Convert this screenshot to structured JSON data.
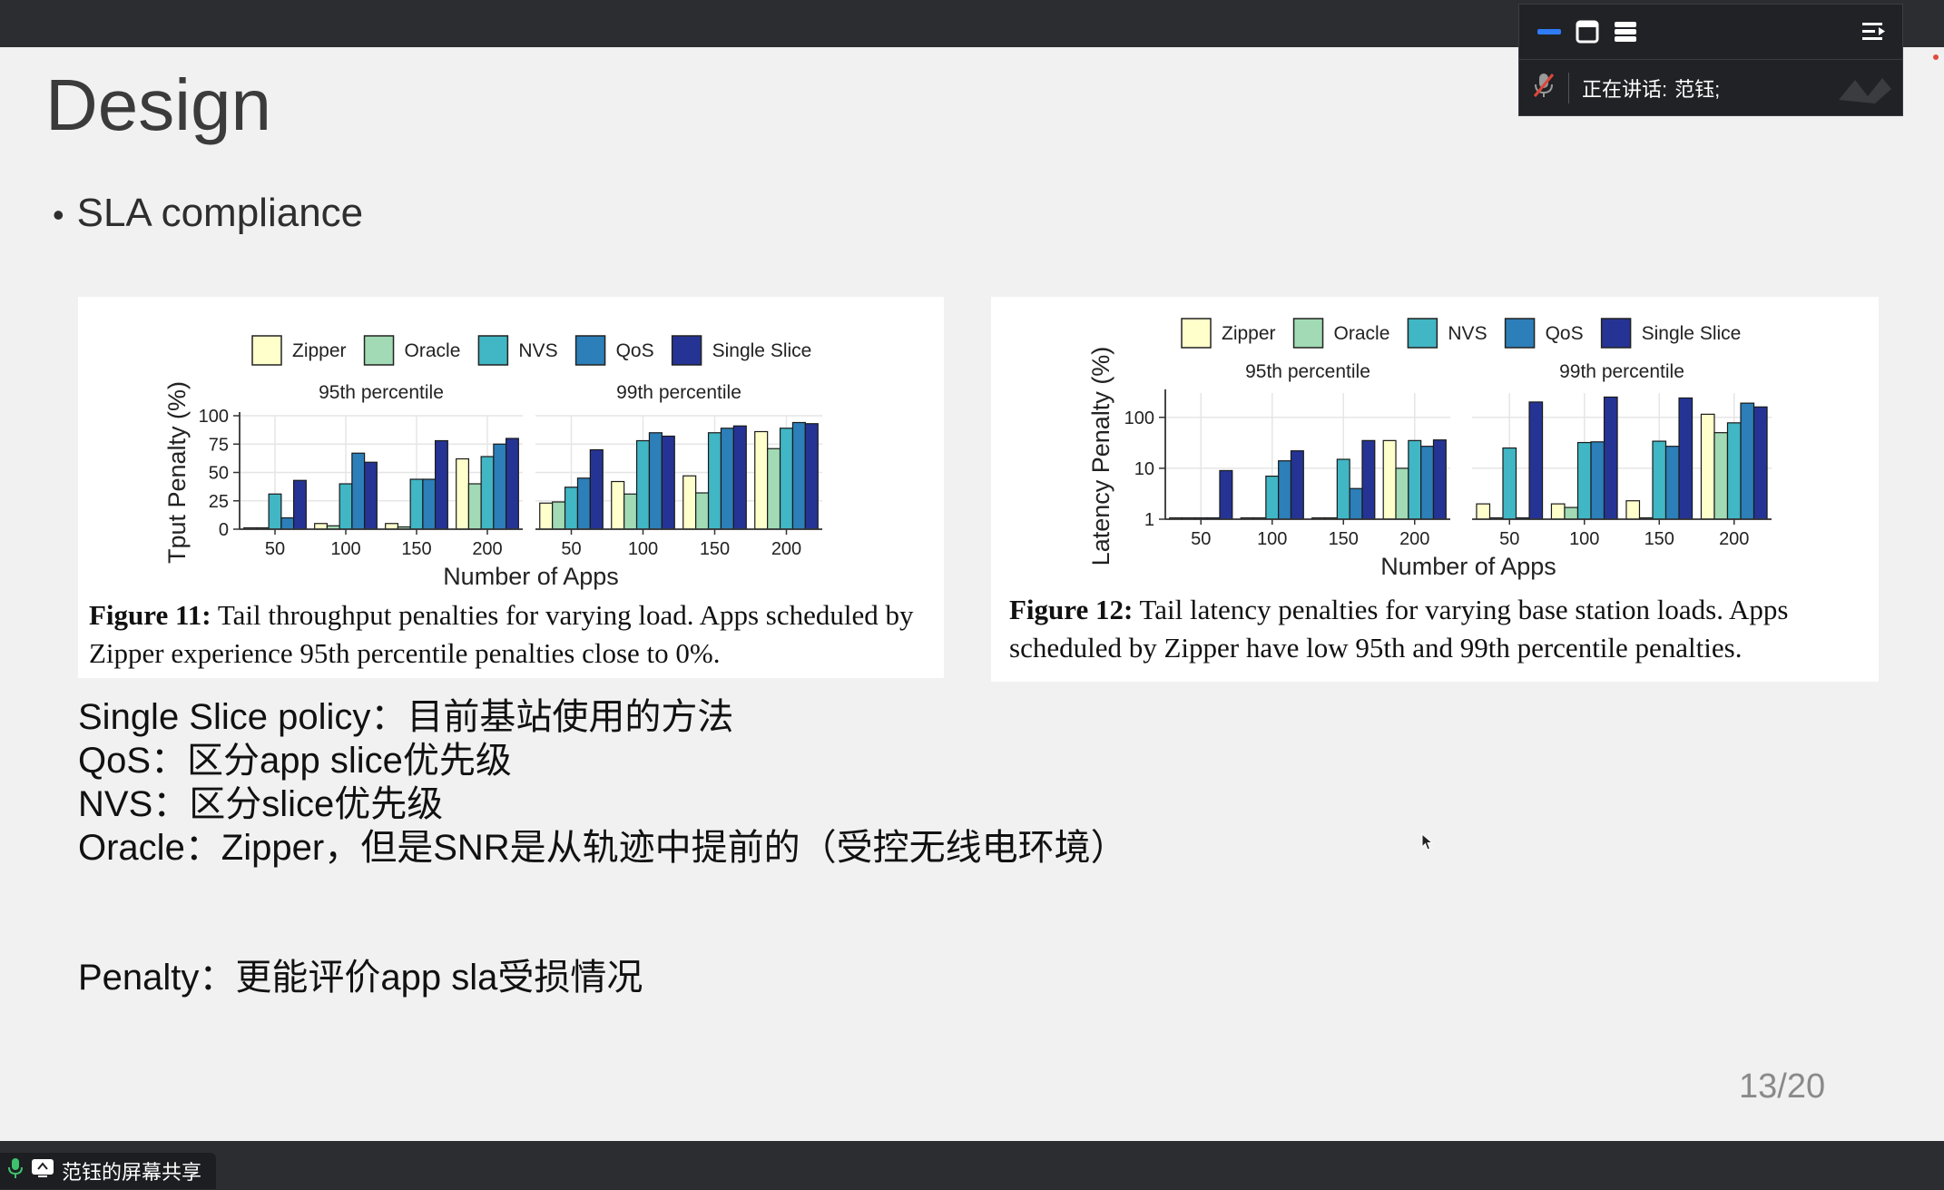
{
  "slide": {
    "title": "Design",
    "bullet": "SLA compliance",
    "page_number": "13/20",
    "notes": [
      "Single Slice policy：目前基站使用的方法",
      "QoS：区分app slice优先级",
      "NVS：区分slice优先级",
      "Oracle：Zipper，但是SNR是从轨迹中提前的（受控无线电环境）"
    ],
    "penalty_note": "Penalty：更能评价app sla受损情况"
  },
  "meeting": {
    "speaking_label": "正在讲话:",
    "speaker": "范钰;",
    "share_label": "范钰的屏幕共享",
    "icons": [
      "minimize-icon",
      "window-icon",
      "list-view-icon",
      "collapse-panel-icon",
      "mic-muted-icon",
      "mic-icon",
      "screen-share-icon",
      "cursor-icon"
    ]
  },
  "colors": {
    "Zipper": "#ffffcc",
    "Oracle": "#a1dab4",
    "NVS": "#41b6c4",
    "QoS": "#2c7fb8",
    "Single Slice": "#253494"
  },
  "chart_data": [
    {
      "type": "bar",
      "figure": "fig11",
      "caption_label": "Figure 11:",
      "caption_text": "Tail throughput penalties for varying load. Apps scheduled by Zipper experience 95th percentile penalties close to 0%.",
      "xlabel": "Number of Apps",
      "ylabel": "Tput Penalty (%)",
      "ylim": [
        0,
        100
      ],
      "yticks": [
        0,
        25,
        50,
        75,
        100
      ],
      "categories": [
        "50",
        "100",
        "150",
        "200"
      ],
      "legend": [
        "Zipper",
        "Oracle",
        "NVS",
        "QoS",
        "Single Slice"
      ],
      "panels": [
        {
          "title": "95th percentile",
          "series": [
            {
              "name": "Zipper",
              "values": [
                0,
                5,
                5,
                62
              ]
            },
            {
              "name": "Oracle",
              "values": [
                0,
                3,
                2,
                40
              ]
            },
            {
              "name": "NVS",
              "values": [
                31,
                40,
                44,
                64
              ]
            },
            {
              "name": "QoS",
              "values": [
                10,
                67,
                44,
                75
              ]
            },
            {
              "name": "Single Slice",
              "values": [
                43,
                59,
                78,
                80
              ]
            }
          ]
        },
        {
          "title": "99th percentile",
          "series": [
            {
              "name": "Zipper",
              "values": [
                23,
                42,
                47,
                86
              ]
            },
            {
              "name": "Oracle",
              "values": [
                24,
                31,
                32,
                71
              ]
            },
            {
              "name": "NVS",
              "values": [
                37,
                78,
                85,
                89
              ]
            },
            {
              "name": "QoS",
              "values": [
                45,
                85,
                89,
                94
              ]
            },
            {
              "name": "Single Slice",
              "values": [
                70,
                82,
                91,
                93
              ]
            }
          ]
        }
      ]
    },
    {
      "type": "bar",
      "figure": "fig12",
      "caption_label": "Figure 12:",
      "caption_text": "Tail latency penalties for varying base station loads. Apps scheduled by Zipper have low 95th and 99th percentile penalties.",
      "xlabel": "Number of Apps",
      "ylabel": "Latency Penalty (%)",
      "yscale": "log",
      "ylim": [
        1,
        300
      ],
      "yticks": [
        1,
        10,
        100
      ],
      "categories": [
        "50",
        "100",
        "150",
        "200"
      ],
      "legend": [
        "Zipper",
        "Oracle",
        "NVS",
        "QoS",
        "Single Slice"
      ],
      "panels": [
        {
          "title": "95th percentile",
          "series": [
            {
              "name": "Zipper",
              "values": [
                1,
                1,
                1,
                35
              ]
            },
            {
              "name": "Oracle",
              "values": [
                1,
                1,
                1,
                10
              ]
            },
            {
              "name": "NVS",
              "values": [
                1,
                7,
                15,
                35
              ]
            },
            {
              "name": "QoS",
              "values": [
                1,
                14,
                4,
                27
              ]
            },
            {
              "name": "Single Slice",
              "values": [
                9,
                22,
                35,
                36
              ]
            }
          ]
        },
        {
          "title": "99th percentile",
          "series": [
            {
              "name": "Zipper",
              "values": [
                2,
                2,
                2.3,
                115
              ]
            },
            {
              "name": "Oracle",
              "values": [
                1,
                1.7,
                1,
                50
              ]
            },
            {
              "name": "NVS",
              "values": [
                25,
                32,
                34,
                78
              ]
            },
            {
              "name": "QoS",
              "values": [
                1,
                33,
                27,
                190
              ]
            },
            {
              "name": "Single Slice",
              "values": [
                200,
                250,
                240,
                160
              ]
            }
          ]
        }
      ]
    }
  ]
}
